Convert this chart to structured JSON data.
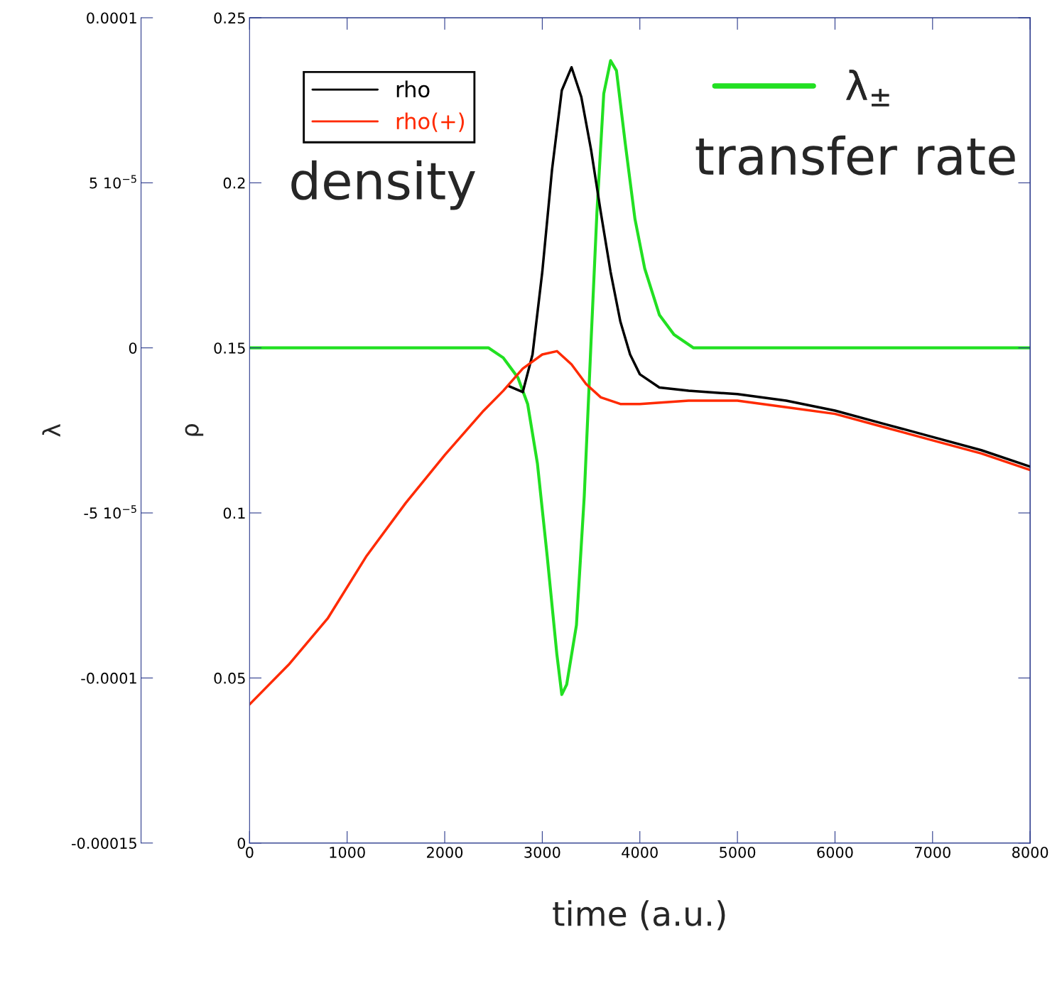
{
  "chart_data": {
    "type": "line",
    "xlabel": "time (a.u.)",
    "ylabel": "ρ",
    "y2label": "λ",
    "xlim": [
      0,
      8000
    ],
    "xticks": [
      0,
      1000,
      2000,
      3000,
      4000,
      5000,
      6000,
      7000,
      8000
    ],
    "ylim": [
      0,
      0.25
    ],
    "yticks": [
      0,
      0.05,
      0.1,
      0.15,
      0.2,
      0.25
    ],
    "y2lim": [
      -0.00015,
      0.0001
    ],
    "y2ticks": [
      -0.00015,
      -0.0001,
      {
        "value": -5e-05,
        "label": "-5 10$^{−5}$"
      },
      0,
      {
        "value": 5e-05,
        "label": "5 10$^{−5}$"
      },
      0.0001
    ],
    "grid": false,
    "legend": "top left",
    "line_style": "solid",
    "marker": "none",
    "annotations": [
      "density",
      "transfer rate"
    ],
    "series": [
      {
        "name": "rho",
        "color": "#000000",
        "x": [
          2650,
          2800,
          2900,
          3000,
          3100,
          3200,
          3300,
          3400,
          3500,
          3600,
          3700,
          3800,
          3900,
          4000,
          4200,
          4500,
          5000,
          5500,
          6000,
          6500,
          7000,
          7500,
          8000
        ],
        "values": [
          0.1385,
          0.1366,
          0.148,
          0.173,
          0.204,
          0.228,
          0.235,
          0.226,
          0.21,
          0.191,
          0.173,
          0.158,
          0.148,
          0.142,
          0.138,
          0.137,
          0.136,
          0.134,
          0.131,
          0.127,
          0.123,
          0.119,
          0.114
        ]
      },
      {
        "name": "rho(+)",
        "color": "#ff2a00",
        "x": [
          0,
          400,
          800,
          1200,
          1600,
          2000,
          2400,
          2600,
          2800,
          3000,
          3150,
          3300,
          3450,
          3600,
          3800,
          4000,
          4500,
          5000,
          5500,
          6000,
          6500,
          7000,
          7500,
          8000
        ],
        "values": [
          0.042,
          0.054,
          0.068,
          0.087,
          0.103,
          0.1175,
          0.131,
          0.137,
          0.1437,
          0.148,
          0.149,
          0.145,
          0.139,
          0.135,
          0.133,
          0.133,
          0.134,
          0.134,
          0.132,
          0.13,
          0.126,
          0.122,
          0.118,
          0.113
        ]
      },
      {
        "name": "λ$_{±}$",
        "color": "#22e022",
        "axis": "y2",
        "x": [
          0,
          2300,
          2450,
          2600,
          2750,
          2850,
          2950,
          3050,
          3150,
          3200,
          3250,
          3350,
          3430,
          3500,
          3560,
          3630,
          3700,
          3760,
          3850,
          3950,
          4050,
          4200,
          4350,
          4550,
          4800,
          8000
        ],
        "values": [
          0,
          0,
          0,
          -3e-06,
          -9e-06,
          -1.7e-05,
          -3.5e-05,
          -6.3e-05,
          -9.3e-05,
          -0.000105,
          -0.000102,
          -8.4e-05,
          -4.5e-05,
          2e-06,
          4.1e-05,
          7.7e-05,
          8.7e-05,
          8.4e-05,
          6.2e-05,
          3.9e-05,
          2.4e-05,
          1e-05,
          4e-06,
          0,
          0,
          0
        ]
      }
    ]
  }
}
